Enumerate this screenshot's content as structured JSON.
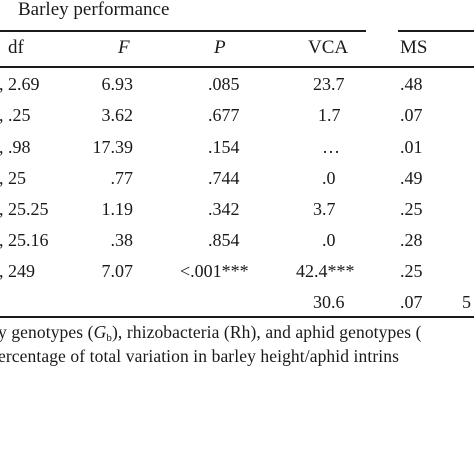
{
  "table": {
    "group_title": "Barley performance",
    "headers": {
      "df": "df",
      "F": "F",
      "P": "P",
      "VCA": "VCA",
      "MS": "MS"
    },
    "rows": [
      {
        "df": ", 2.69",
        "F": "6.93",
        "P": ".085",
        "VCA": "23.7",
        "MS": ".48"
      },
      {
        "df": ", .25",
        "F": "3.62",
        "P": ".677",
        "VCA": "1.7",
        "MS": ".07"
      },
      {
        "df": ", .98",
        "F": "17.39",
        "P": ".154",
        "VCA": "…",
        "MS": ".01"
      },
      {
        "df": ", 25",
        "F": ".77",
        "P": ".744",
        "VCA": ".0",
        "MS": ".49"
      },
      {
        "df": ", 25.25",
        "F": "1.19",
        "P": ".342",
        "VCA": "3.7",
        "MS": ".25"
      },
      {
        "df": ", 25.16",
        "F": ".38",
        "P": ".854",
        "VCA": ".0",
        "MS": ".28"
      },
      {
        "df": ", 249",
        "F": "7.07",
        "P": "<.001***",
        "VCA": "42.4***",
        "MS": ".25"
      },
      {
        "df": "",
        "F": "",
        "P": "",
        "VCA": "30.6",
        "MS": ".07",
        "extra": "5"
      }
    ]
  },
  "footnote": {
    "line1_a": "y genotypes (",
    "line1_g": "G",
    "line1_sub": "b",
    "line1_b": "), rhizobacteria (Rh), and aphid genotypes (",
    "line2": "ercentage of total variation in barley height/aphid intrins"
  }
}
